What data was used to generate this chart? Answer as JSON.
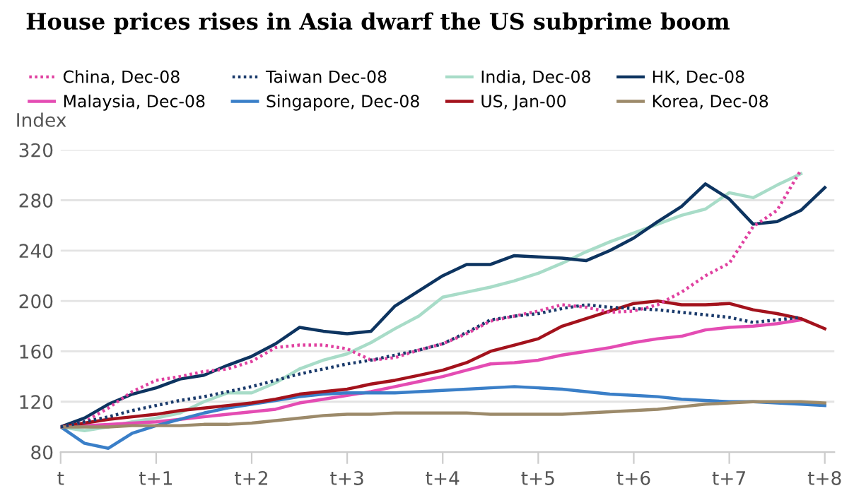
{
  "chart_data": {
    "type": "line",
    "title": "House prices rises in Asia dwarf the US subprime boom",
    "ylabel": "Index",
    "categories": [
      "t",
      null,
      null,
      null,
      "t+1",
      null,
      null,
      null,
      "t+2",
      null,
      null,
      null,
      "t+3",
      null,
      null,
      null,
      "t+4",
      null,
      null,
      null,
      "t+5",
      null,
      null,
      null,
      "t+6",
      null,
      null,
      null,
      "t+7",
      null,
      null,
      null,
      "t+8"
    ],
    "ylim": [
      80,
      320
    ],
    "yticks": [
      80,
      120,
      160,
      200,
      240,
      280,
      320
    ],
    "grid": "y",
    "legend": "top",
    "marker": "none",
    "series": [
      {
        "name": "China, Dec-08",
        "color": "#e040a0",
        "line_style": "dotted",
        "values": [
          100,
          104,
          115,
          128,
          137,
          140,
          144,
          146,
          152,
          163,
          165,
          165,
          162,
          153,
          155,
          161,
          166,
          174,
          184,
          188,
          192,
          197,
          195,
          191,
          192,
          197,
          207,
          220,
          230,
          259,
          272,
          304,
          null
        ]
      },
      {
        "name": "Taiwan Dec-08",
        "color": "#1a3a6b",
        "line_style": "dotted",
        "values": [
          100,
          104,
          108,
          113,
          117,
          121,
          124,
          128,
          132,
          137,
          142,
          146,
          150,
          153,
          157,
          161,
          166,
          175,
          185,
          188,
          190,
          194,
          197,
          195,
          194,
          193,
          191,
          189,
          187,
          183,
          185,
          187,
          null
        ]
      },
      {
        "name": "India, Dec-08",
        "color": "#a8dcc8",
        "line_style": "solid",
        "values": [
          100,
          97,
          100,
          104,
          107,
          111,
          120,
          127,
          127,
          135,
          146,
          153,
          158,
          167,
          178,
          188,
          203,
          207,
          211,
          216,
          222,
          230,
          239,
          247,
          254,
          261,
          268,
          273,
          286,
          282,
          292,
          301,
          null
        ]
      },
      {
        "name": "HK, Dec-08",
        "color": "#0d3460",
        "line_style": "solid",
        "values": [
          100,
          107,
          118,
          126,
          131,
          138,
          141,
          149,
          156,
          166,
          179,
          176,
          174,
          176,
          196,
          208,
          220,
          229,
          229,
          236,
          235,
          234,
          232,
          240,
          250,
          263,
          275,
          293,
          281,
          261,
          263,
          272,
          290
        ]
      },
      {
        "name": "Malaysia, Dec-08",
        "color": "#e44cb3",
        "line_style": "solid",
        "values": [
          100,
          101,
          102,
          103,
          104,
          106,
          108,
          110,
          112,
          114,
          119,
          122,
          125,
          128,
          132,
          136,
          140,
          145,
          150,
          151,
          153,
          157,
          160,
          163,
          167,
          170,
          172,
          177,
          179,
          180,
          182,
          185,
          null
        ]
      },
      {
        "name": "Singapore, Dec-08",
        "color": "#3a7fc8",
        "line_style": "solid",
        "values": [
          100,
          87,
          83,
          95,
          101,
          106,
          111,
          115,
          118,
          121,
          124,
          126,
          127,
          127,
          127,
          128,
          129,
          130,
          131,
          132,
          131,
          130,
          128,
          126,
          125,
          124,
          122,
          121,
          120,
          120,
          119,
          118,
          117
        ]
      },
      {
        "name": "US, Jan-00",
        "color": "#a3121c",
        "line_style": "solid",
        "values": [
          100,
          103,
          106,
          108,
          110,
          113,
          115,
          117,
          119,
          122,
          126,
          128,
          130,
          134,
          137,
          141,
          145,
          151,
          160,
          165,
          170,
          180,
          186,
          192,
          198,
          200,
          197,
          197,
          198,
          193,
          190,
          186,
          178
        ]
      },
      {
        "name": "Korea, Dec-08",
        "color": "#9c8a6a",
        "line_style": "solid",
        "values": [
          100,
          100,
          100,
          101,
          101,
          101,
          102,
          102,
          103,
          105,
          107,
          109,
          110,
          110,
          111,
          111,
          111,
          111,
          110,
          110,
          110,
          110,
          111,
          112,
          113,
          114,
          116,
          118,
          119,
          120,
          120,
          120,
          119
        ]
      }
    ]
  }
}
